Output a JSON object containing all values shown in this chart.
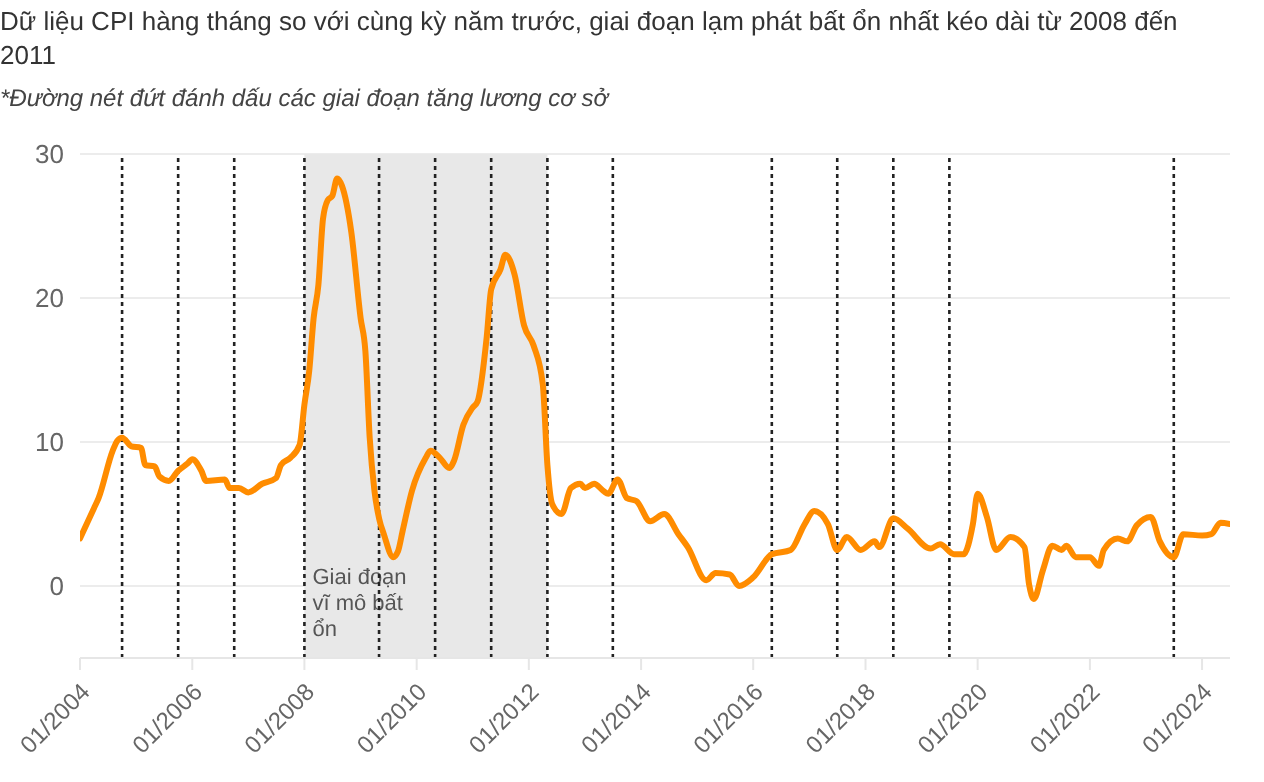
{
  "chart_data": {
    "type": "line",
    "title": "Dữ liệu CPI hàng tháng so với cùng kỳ năm trước, giai đoạn lạm phát bất ổn nhất kéo dài từ 2008 đến 2011",
    "annotations": [
      "*Đường nét đứt đánh dấu các giai đoạn tăng lương cơ sở"
    ],
    "color": "#ff8c00",
    "x": [
      "2004-01",
      "2004-04",
      "2004-05",
      "2004-08",
      "2004-09",
      "2004-10",
      "2004-12",
      "2005-02",
      "2005-03",
      "2005-05",
      "2005-06",
      "2005-08",
      "2005-10",
      "2005-12",
      "2006-01",
      "2006-03",
      "2006-04",
      "2006-08",
      "2006-09",
      "2006-11",
      "2007-01",
      "2007-04",
      "2007-07",
      "2007-08",
      "2007-10",
      "2007-12",
      "2008-01",
      "2008-02",
      "2008-03",
      "2008-04",
      "2008-05",
      "2008-06",
      "2008-07",
      "2008-08",
      "2008-09",
      "2008-11",
      "2009-01",
      "2009-02",
      "2009-03",
      "2009-04",
      "2009-05",
      "2009-06",
      "2009-08",
      "2009-09",
      "2009-10",
      "2009-12",
      "2010-03",
      "2010-04",
      "2010-06",
      "2010-08",
      "2010-09",
      "2010-11",
      "2011-01",
      "2011-02",
      "2011-04",
      "2011-05",
      "2011-07",
      "2011-08",
      "2011-10",
      "2011-12",
      "2012-02",
      "2012-04",
      "2012-05",
      "2012-06",
      "2012-08",
      "2012-10",
      "2012-12",
      "2013-01",
      "2013-03",
      "2013-05",
      "2013-06",
      "2013-08",
      "2013-10",
      "2013-12",
      "2014-03",
      "2014-06",
      "2014-09",
      "2014-11",
      "2015-03",
      "2015-05",
      "2015-08",
      "2015-10",
      "2016-01",
      "2016-05",
      "2016-09",
      "2016-12",
      "2017-02",
      "2017-05",
      "2017-07",
      "2017-09",
      "2017-12",
      "2018-03",
      "2018-04",
      "2018-07",
      "2018-10",
      "2019-03",
      "2019-05",
      "2019-08",
      "2019-10",
      "2019-12",
      "2020-01",
      "2020-03",
      "2020-05",
      "2020-08",
      "2020-11",
      "2020-12",
      "2021-01",
      "2021-03",
      "2021-05",
      "2021-07",
      "2021-08",
      "2021-10",
      "2022-01",
      "2022-03",
      "2022-04",
      "2022-07",
      "2022-09",
      "2022-11",
      "2023-02",
      "2023-04",
      "2023-07",
      "2023-09",
      "2024-01",
      "2024-03",
      "2024-05",
      "2024-07"
    ],
    "values": [
      3.3,
      5.4,
      6.1,
      9.4,
      10.1,
      10.3,
      9.7,
      9.6,
      8.4,
      8.3,
      7.6,
      7.3,
      8.0,
      8.5,
      8.8,
      8.0,
      7.3,
      7.4,
      6.8,
      6.8,
      6.5,
      7.1,
      7.5,
      8.4,
      8.9,
      9.8,
      12.6,
      14.9,
      18.6,
      20.9,
      25.5,
      26.8,
      27.1,
      28.3,
      27.8,
      24.6,
      18.6,
      16.3,
      10.3,
      6.6,
      4.7,
      3.6,
      2.0,
      2.4,
      3.8,
      6.6,
      8.9,
      9.4,
      8.9,
      8.2,
      8.7,
      11.2,
      12.4,
      12.8,
      17.2,
      20.6,
      22.0,
      23.0,
      21.6,
      18.1,
      16.7,
      14.0,
      8.4,
      5.7,
      5.0,
      6.8,
      7.1,
      6.8,
      7.1,
      6.6,
      6.4,
      7.4,
      6.1,
      5.9,
      4.5,
      5.0,
      3.6,
      2.7,
      0.4,
      0.9,
      0.8,
      0,
      0.6,
      2.2,
      2.5,
      4.3,
      5.2,
      4.3,
      2.5,
      3.4,
      2.5,
      3.1,
      2.7,
      4.7,
      4.0,
      2.6,
      2.9,
      2.2,
      2.2,
      4.3,
      6.4,
      4.8,
      2.5,
      3.4,
      2.7,
      0.1,
      -0.9,
      1.1,
      2.8,
      2.5,
      2.8,
      2.0,
      2.0,
      1.4,
      2.5,
      3.3,
      3.1,
      4.2,
      4.8,
      3.1,
      2.0,
      3.6,
      3.5,
      3.6,
      4.4,
      4.3
    ],
    "xlim": [
      "2004-01",
      "2024-07"
    ],
    "xticks": [
      {
        "value": "2004-01",
        "label": "01/2004"
      },
      {
        "value": "2006-01",
        "label": "01/2006"
      },
      {
        "value": "2008-01",
        "label": "01/2008"
      },
      {
        "value": "2010-01",
        "label": "01/2010"
      },
      {
        "value": "2012-01",
        "label": "01/2012"
      },
      {
        "value": "2014-01",
        "label": "01/2014"
      },
      {
        "value": "2016-01",
        "label": "01/2016"
      },
      {
        "value": "2018-01",
        "label": "01/2018"
      },
      {
        "value": "2020-01",
        "label": "01/2020"
      },
      {
        "value": "2022-01",
        "label": "01/2022"
      },
      {
        "value": "2024-01",
        "label": "01/2024"
      }
    ],
    "ylim": [
      -5,
      30
    ],
    "yticks": [
      0,
      10,
      20,
      30
    ],
    "grid": "y",
    "ref_lines": [
      {
        "axis": "x",
        "value": "2004-10",
        "color": "#222222",
        "line_style": "dotted"
      },
      {
        "axis": "x",
        "value": "2005-10",
        "color": "#222222",
        "line_style": "dotted"
      },
      {
        "axis": "x",
        "value": "2006-10",
        "color": "#222222",
        "line_style": "dotted"
      },
      {
        "axis": "x",
        "value": "2008-01",
        "color": "#222222",
        "line_style": "dotted"
      },
      {
        "axis": "x",
        "value": "2009-05",
        "color": "#222222",
        "line_style": "dotted"
      },
      {
        "axis": "x",
        "value": "2010-05",
        "color": "#222222",
        "line_style": "dotted"
      },
      {
        "axis": "x",
        "value": "2011-05",
        "color": "#222222",
        "line_style": "dotted"
      },
      {
        "axis": "x",
        "value": "2012-05",
        "color": "#222222",
        "line_style": "dotted"
      },
      {
        "axis": "x",
        "value": "2013-07",
        "color": "#222222",
        "line_style": "dotted"
      },
      {
        "axis": "x",
        "value": "2016-05",
        "color": "#222222",
        "line_style": "dotted"
      },
      {
        "axis": "x",
        "value": "2017-07",
        "color": "#222222",
        "line_style": "dotted"
      },
      {
        "axis": "x",
        "value": "2018-07",
        "color": "#222222",
        "line_style": "dotted"
      },
      {
        "axis": "x",
        "value": "2019-07",
        "color": "#222222",
        "line_style": "dotted"
      },
      {
        "axis": "x",
        "value": "2023-07",
        "color": "#222222",
        "line_style": "dotted"
      }
    ],
    "bands": [
      {
        "axis": "x",
        "from": "2008-01",
        "to": "2012-05",
        "label": "Giai đoạn vĩ mô bất ổn",
        "color": "#e8e8e8"
      }
    ]
  }
}
